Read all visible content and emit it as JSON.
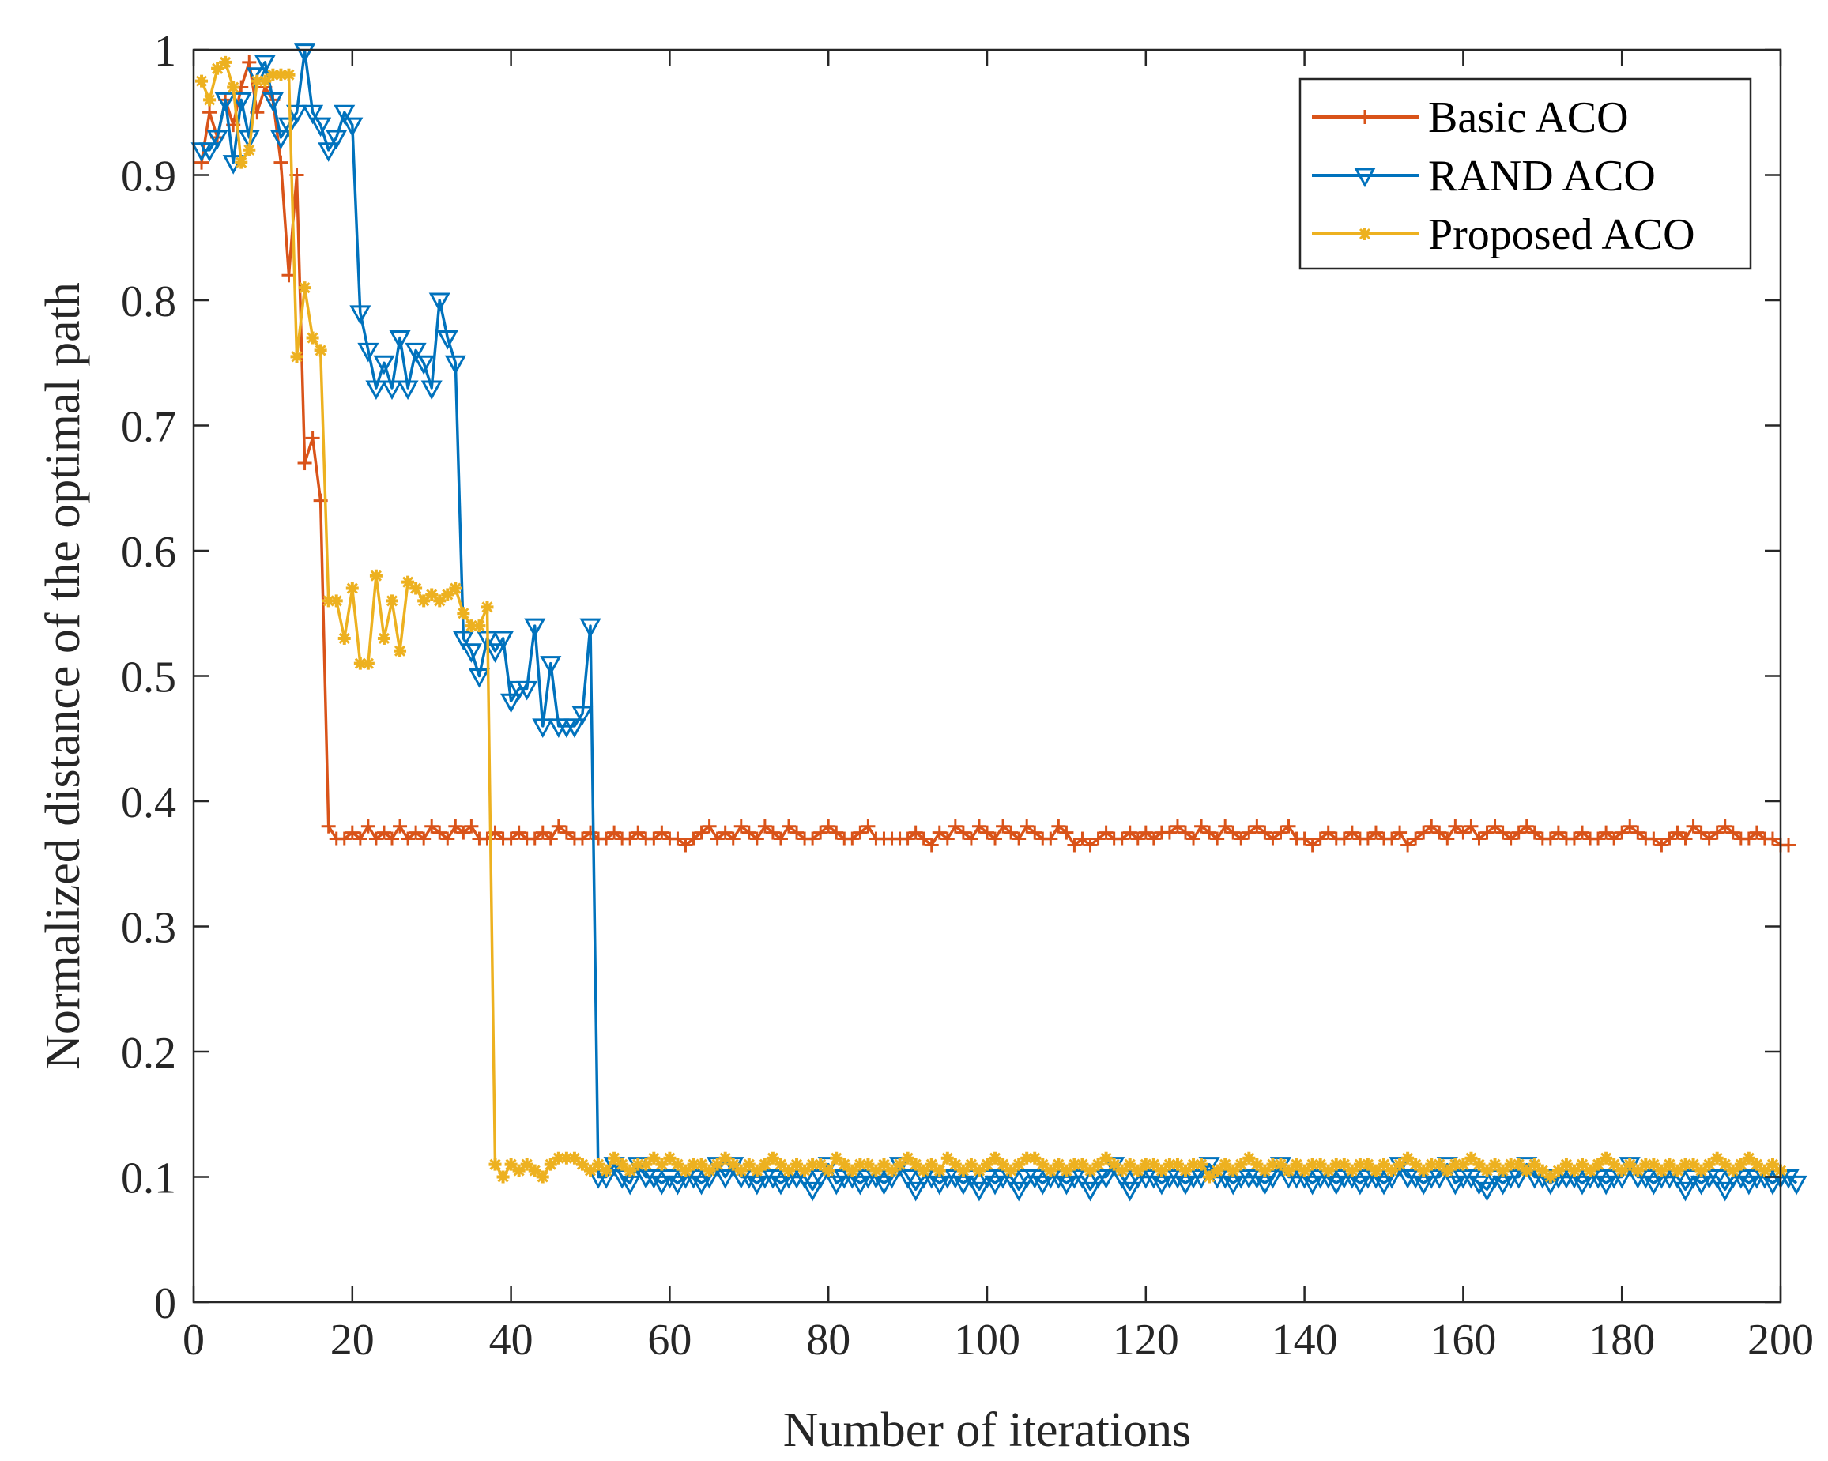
{
  "chart_data": {
    "type": "line",
    "title": "",
    "xlabel": "Number of iterations",
    "ylabel": "Normalized distance of the optimal path",
    "xlim": [
      0,
      200
    ],
    "ylim": [
      0,
      1
    ],
    "xticks": [
      0,
      20,
      40,
      60,
      80,
      100,
      120,
      140,
      160,
      180,
      200
    ],
    "yticks": [
      0,
      0.1,
      0.2,
      0.3,
      0.4,
      0.5,
      0.6,
      0.7,
      0.8,
      0.9,
      1
    ],
    "xtick_labels": [
      "0",
      "20",
      "40",
      "60",
      "80",
      "100",
      "120",
      "140",
      "160",
      "180",
      "200"
    ],
    "ytick_labels": [
      "0",
      "0.1",
      "0.2",
      "0.3",
      "0.4",
      "0.5",
      "0.6",
      "0.7",
      "0.8",
      "0.9",
      "1"
    ],
    "grid": false,
    "legend_position": "top-right",
    "series": [
      {
        "name": "Basic ACO",
        "color": "#D95319",
        "marker": "plus",
        "values": [
          0.91,
          0.95,
          0.93,
          0.96,
          0.94,
          0.97,
          0.99,
          0.95,
          0.97,
          0.96,
          0.91,
          0.82,
          0.9,
          0.67,
          0.69,
          0.64,
          0.38,
          0.37,
          0.37,
          0.375,
          0.37,
          0.38,
          0.37,
          0.375,
          0.37,
          0.38,
          0.37,
          0.375,
          0.37,
          0.38,
          0.375,
          0.37,
          0.38,
          0.375,
          0.38,
          0.37,
          0.37,
          0.375,
          0.37,
          0.37,
          0.375,
          0.37,
          0.37,
          0.375,
          0.37,
          0.38,
          0.375,
          0.37,
          0.37,
          0.375,
          0.37,
          0.37,
          0.375,
          0.37,
          0.37,
          0.375,
          0.37,
          0.37,
          0.375,
          0.37,
          0.37,
          0.365,
          0.37,
          0.375,
          0.38,
          0.37,
          0.375,
          0.37,
          0.38,
          0.375,
          0.37,
          0.38,
          0.375,
          0.37,
          0.38,
          0.375,
          0.37,
          0.37,
          0.375,
          0.38,
          0.375,
          0.37,
          0.37,
          0.375,
          0.38,
          0.37,
          0.37,
          0.37,
          0.37,
          0.37,
          0.375,
          0.37,
          0.365,
          0.375,
          0.37,
          0.38,
          0.375,
          0.37,
          0.38,
          0.375,
          0.37,
          0.38,
          0.375,
          0.37,
          0.38,
          0.375,
          0.37,
          0.37,
          0.38,
          0.375,
          0.365,
          0.37,
          0.365,
          0.37,
          0.375,
          0.37,
          0.37,
          0.375,
          0.37,
          0.375,
          0.37,
          0.375,
          0.375,
          0.38,
          0.375,
          0.37,
          0.38,
          0.375,
          0.37,
          0.38,
          0.375,
          0.37,
          0.375,
          0.38,
          0.375,
          0.37,
          0.375,
          0.38,
          0.37,
          0.37,
          0.365,
          0.37,
          0.375,
          0.37,
          0.37,
          0.375,
          0.37,
          0.37,
          0.375,
          0.37,
          0.37,
          0.375,
          0.365,
          0.37,
          0.375,
          0.38,
          0.375,
          0.37,
          0.38,
          0.375,
          0.38,
          0.37,
          0.375,
          0.38,
          0.375,
          0.37,
          0.375,
          0.38,
          0.375,
          0.37,
          0.37,
          0.375,
          0.37,
          0.37,
          0.375,
          0.37,
          0.37,
          0.375,
          0.37,
          0.375,
          0.38,
          0.375,
          0.37,
          0.37,
          0.365,
          0.37,
          0.375,
          0.37,
          0.38,
          0.375,
          0.37,
          0.375,
          0.38,
          0.375,
          0.37,
          0.37,
          0.375,
          0.37,
          0.37,
          0.365,
          0.365
        ]
      },
      {
        "name": "RAND ACO",
        "color": "#0072BD",
        "marker": "triangle-down",
        "values": [
          0.92,
          0.92,
          0.93,
          0.96,
          0.91,
          0.96,
          0.93,
          0.98,
          0.99,
          0.96,
          0.93,
          0.94,
          0.95,
          0.999,
          0.95,
          0.94,
          0.92,
          0.93,
          0.95,
          0.94,
          0.79,
          0.76,
          0.73,
          0.75,
          0.73,
          0.77,
          0.73,
          0.76,
          0.75,
          0.73,
          0.8,
          0.77,
          0.75,
          0.53,
          0.52,
          0.5,
          0.53,
          0.52,
          0.53,
          0.48,
          0.49,
          0.49,
          0.54,
          0.46,
          0.51,
          0.46,
          0.46,
          0.46,
          0.47,
          0.54,
          0.1,
          0.1,
          0.11,
          0.1,
          0.095,
          0.11,
          0.1,
          0.1,
          0.095,
          0.1,
          0.095,
          0.1,
          0.1,
          0.095,
          0.1,
          0.11,
          0.1,
          0.11,
          0.1,
          0.1,
          0.095,
          0.1,
          0.1,
          0.095,
          0.1,
          0.1,
          0.1,
          0.09,
          0.1,
          0.11,
          0.095,
          0.1,
          0.1,
          0.095,
          0.1,
          0.1,
          0.095,
          0.1,
          0.11,
          0.1,
          0.09,
          0.1,
          0.1,
          0.095,
          0.1,
          0.1,
          0.095,
          0.1,
          0.09,
          0.1,
          0.095,
          0.1,
          0.1,
          0.09,
          0.1,
          0.1,
          0.095,
          0.1,
          0.1,
          0.095,
          0.1,
          0.1,
          0.09,
          0.1,
          0.1,
          0.11,
          0.1,
          0.09,
          0.1,
          0.1,
          0.1,
          0.095,
          0.1,
          0.1,
          0.095,
          0.1,
          0.1,
          0.11,
          0.1,
          0.1,
          0.095,
          0.1,
          0.1,
          0.1,
          0.095,
          0.1,
          0.11,
          0.1,
          0.1,
          0.1,
          0.095,
          0.1,
          0.1,
          0.095,
          0.1,
          0.1,
          0.095,
          0.1,
          0.1,
          0.095,
          0.1,
          0.11,
          0.1,
          0.1,
          0.095,
          0.1,
          0.1,
          0.11,
          0.095,
          0.1,
          0.1,
          0.095,
          0.09,
          0.1,
          0.095,
          0.1,
          0.1,
          0.11,
          0.1,
          0.1,
          0.095,
          0.1,
          0.1,
          0.1,
          0.095,
          0.1,
          0.1,
          0.095,
          0.1,
          0.1,
          0.11,
          0.1,
          0.1,
          0.095,
          0.1,
          0.1,
          0.1,
          0.09,
          0.1,
          0.095,
          0.1,
          0.1,
          0.09,
          0.1,
          0.1,
          0.095,
          0.1,
          0.1,
          0.095,
          0.1,
          0.1,
          0.095
        ]
      },
      {
        "name": "Proposed ACO",
        "color": "#EDB120",
        "marker": "asterisk",
        "values": [
          0.975,
          0.96,
          0.985,
          0.99,
          0.97,
          0.91,
          0.92,
          0.975,
          0.975,
          0.98,
          0.98,
          0.98,
          0.755,
          0.81,
          0.77,
          0.76,
          0.56,
          0.56,
          0.53,
          0.57,
          0.51,
          0.51,
          0.58,
          0.53,
          0.56,
          0.52,
          0.575,
          0.57,
          0.56,
          0.565,
          0.56,
          0.565,
          0.57,
          0.55,
          0.54,
          0.54,
          0.555,
          0.11,
          0.1,
          0.11,
          0.105,
          0.11,
          0.105,
          0.1,
          0.11,
          0.115,
          0.115,
          0.115,
          0.11,
          0.105,
          0.11,
          0.105,
          0.115,
          0.11,
          0.105,
          0.11,
          0.11,
          0.115,
          0.11,
          0.115,
          0.11,
          0.105,
          0.11,
          0.11,
          0.105,
          0.11,
          0.115,
          0.11,
          0.105,
          0.11,
          0.105,
          0.11,
          0.115,
          0.11,
          0.105,
          0.11,
          0.105,
          0.11,
          0.11,
          0.105,
          0.115,
          0.11,
          0.105,
          0.11,
          0.11,
          0.105,
          0.11,
          0.105,
          0.11,
          0.115,
          0.11,
          0.105,
          0.11,
          0.105,
          0.115,
          0.11,
          0.105,
          0.11,
          0.105,
          0.11,
          0.115,
          0.11,
          0.105,
          0.11,
          0.115,
          0.115,
          0.11,
          0.105,
          0.11,
          0.105,
          0.11,
          0.11,
          0.105,
          0.11,
          0.115,
          0.11,
          0.105,
          0.11,
          0.105,
          0.11,
          0.11,
          0.105,
          0.11,
          0.11,
          0.105,
          0.11,
          0.11,
          0.1,
          0.105,
          0.11,
          0.105,
          0.11,
          0.115,
          0.11,
          0.105,
          0.11,
          0.11,
          0.105,
          0.11,
          0.105,
          0.11,
          0.11,
          0.105,
          0.11,
          0.11,
          0.105,
          0.11,
          0.11,
          0.105,
          0.11,
          0.105,
          0.11,
          0.115,
          0.11,
          0.105,
          0.11,
          0.11,
          0.105,
          0.11,
          0.11,
          0.115,
          0.11,
          0.105,
          0.11,
          0.105,
          0.11,
          0.11,
          0.105,
          0.11,
          0.105,
          0.1,
          0.105,
          0.11,
          0.105,
          0.11,
          0.105,
          0.11,
          0.115,
          0.11,
          0.105,
          0.11,
          0.105,
          0.11,
          0.11,
          0.105,
          0.11,
          0.105,
          0.11,
          0.11,
          0.105,
          0.11,
          0.115,
          0.11,
          0.105,
          0.11,
          0.115,
          0.11,
          0.105,
          0.11,
          0.105
        ]
      }
    ]
  }
}
